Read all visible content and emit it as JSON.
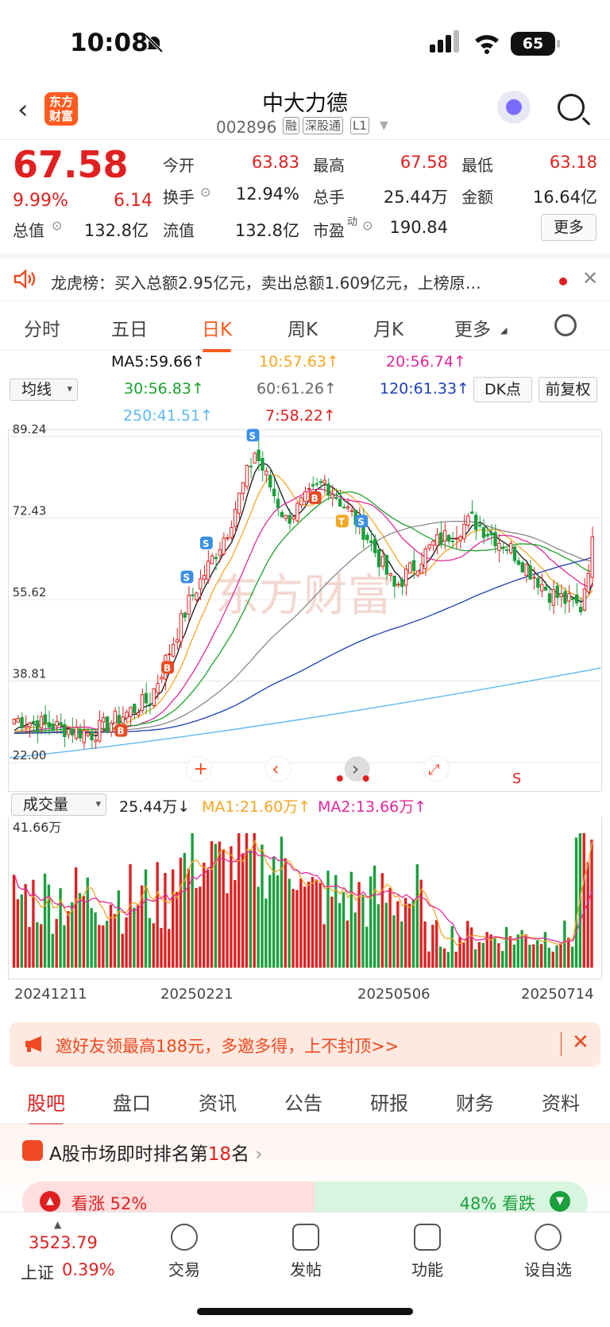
{
  "status": {
    "time": "10:08",
    "battery": "65"
  },
  "header": {
    "logo": "东方财富",
    "name": "中大力德",
    "code": "002896",
    "tags": [
      "融",
      "深股通",
      "L1"
    ]
  },
  "quote": {
    "price": "67.58",
    "pct": "9.99%",
    "change": "6.14",
    "fields": [
      {
        "label": "今开",
        "value": "63.83",
        "red": true
      },
      {
        "label": "最高",
        "value": "67.58",
        "red": true
      },
      {
        "label": "最低",
        "value": "63.18",
        "red": true
      },
      {
        "label": "换手",
        "value": "12.94%",
        "red": false
      },
      {
        "label": "总手",
        "value": "25.44万",
        "red": false
      },
      {
        "label": "金额",
        "value": "16.64亿",
        "red": false
      },
      {
        "label": "总值",
        "value": "132.8亿",
        "red": false
      },
      {
        "label": "流值",
        "value": "132.8亿",
        "red": false
      },
      {
        "label": "市盈",
        "value": "190.84",
        "red": false
      }
    ],
    "pe_sup": "动",
    "more": "更多"
  },
  "lhb": {
    "text": "龙虎榜：买入总额2.95亿元，卖出总额1.609亿元，上榜原…"
  },
  "ktabs": [
    "分时",
    "五日",
    "日K",
    "周K",
    "月K",
    "更多"
  ],
  "ktab_active": 2,
  "ma": {
    "select": "均线",
    "items": [
      {
        "text": "MA5:59.66↑",
        "color": "#111111"
      },
      {
        "text": "10:57.63↑",
        "color": "#f5a623"
      },
      {
        "text": "20:56.74↑",
        "color": "#e0289a"
      },
      {
        "text": "30:56.83↑",
        "color": "#1aa32a"
      },
      {
        "text": "60:61.26↑",
        "color": "#666666"
      },
      {
        "text": "120:61.33↑",
        "color": "#1b3fb5"
      },
      {
        "text": "250:41.51↑",
        "color": "#5db8f0"
      },
      {
        "text": "7:58.22↑",
        "color": "#e02020"
      }
    ],
    "dk": "DK点",
    "fq": "前复权"
  },
  "chart_data": {
    "type": "candlestick",
    "y_ticks": [
      "89.24",
      "72.43",
      "55.62",
      "38.81",
      "22.00"
    ],
    "ylim": [
      22.0,
      89.24
    ],
    "x_labels": [
      "20241211",
      "20250221",
      "20250506",
      "20250714"
    ],
    "watermark": "东方财富",
    "volume": {
      "label": "成交量",
      "value": "25.44万↓",
      "ma1": "MA1:21.60万↑",
      "ma2": "MA2:13.66万↑",
      "ymax": "41.66万"
    }
  },
  "promo": {
    "text": "邀好友领最高188元，多邀多得，上不封顶>>"
  },
  "itabs": [
    "股吧",
    "盘口",
    "资讯",
    "公告",
    "研报",
    "财务",
    "资料"
  ],
  "rank": {
    "prefix": "A股市场即时排名第",
    "num": "18",
    "suffix": "名",
    "up": "看涨 52%",
    "down": "48% 看跌"
  },
  "bnav": {
    "index_value": "3523.79",
    "index_name": "上证",
    "index_pct": "0.39%",
    "items": [
      "交易",
      "发帖",
      "功能",
      "设自选"
    ]
  }
}
